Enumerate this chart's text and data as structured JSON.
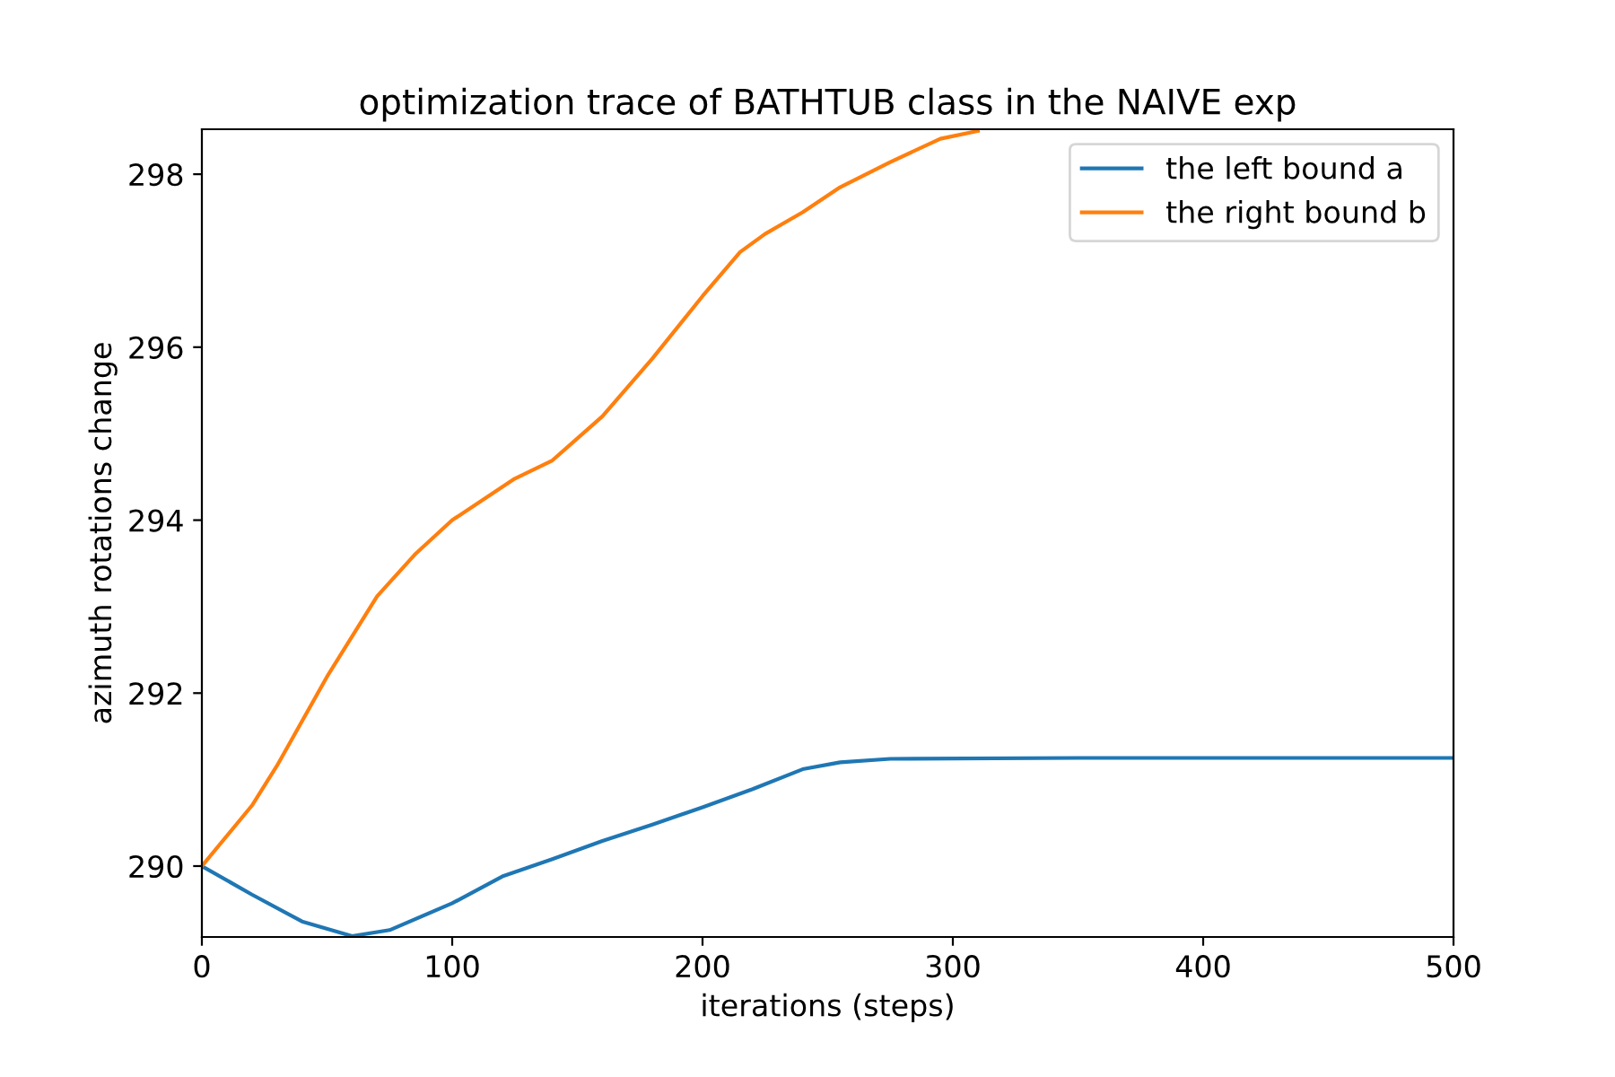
{
  "chart_data": {
    "type": "line",
    "title": "optimization trace of BATHTUB class in the NAIVE exp",
    "xlabel": "iterations (steps)",
    "ylabel": "azimuth rotations change",
    "series": [
      {
        "name": "the left bound a",
        "color": "#1f77b4",
        "x": [
          0,
          20,
          40,
          60,
          75,
          100,
          120,
          140,
          160,
          180,
          200,
          220,
          240,
          255,
          275,
          350,
          500
        ],
        "values": [
          290.0,
          289.67,
          289.36,
          289.19,
          289.26,
          289.57,
          289.88,
          290.08,
          290.29,
          290.48,
          290.68,
          290.89,
          291.12,
          291.2,
          291.24,
          291.25,
          291.25
        ]
      },
      {
        "name": "the right bound b",
        "color": "#ff7f0e",
        "x": [
          0,
          20,
          30,
          50,
          70,
          85,
          100,
          125,
          140,
          160,
          180,
          200,
          215,
          225,
          240,
          255,
          275,
          295,
          310
        ],
        "values": [
          290.0,
          290.7,
          291.16,
          292.19,
          293.12,
          293.6,
          294.0,
          294.48,
          294.69,
          295.2,
          295.87,
          296.59,
          297.1,
          297.31,
          297.56,
          297.85,
          298.14,
          298.41,
          298.5
        ]
      }
    ],
    "xlim": [
      0,
      500
    ],
    "ylim": [
      289.18,
      298.52
    ],
    "xticks": [
      0,
      100,
      200,
      300,
      400,
      500
    ],
    "yticks": [
      290,
      292,
      294,
      296,
      298
    ],
    "legend": "top right",
    "grid": false
  }
}
